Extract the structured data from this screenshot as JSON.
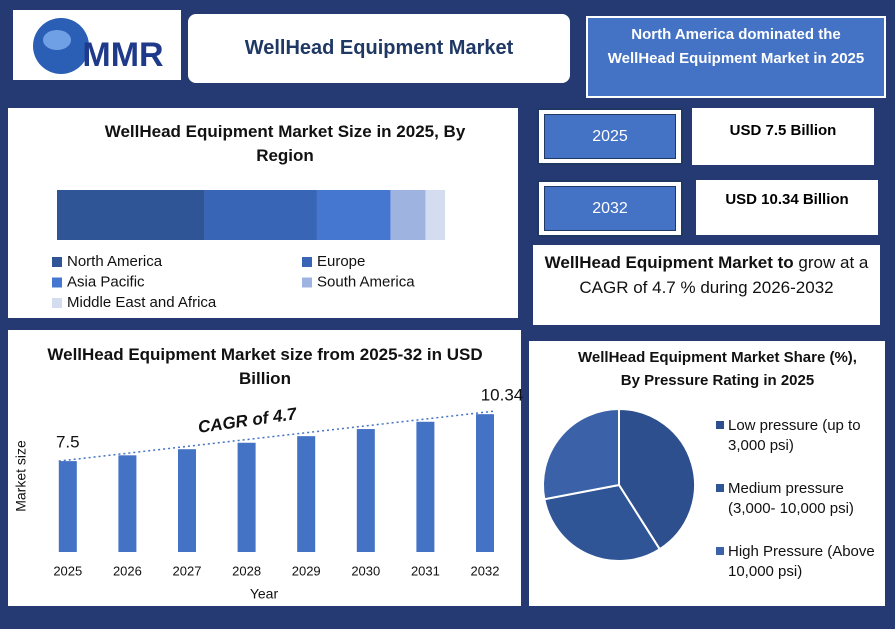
{
  "header": {
    "logo_text": "MMR",
    "title": "WellHead Equipment Market",
    "highlight": "North America dominated the WellHead Equipment Market in 2025"
  },
  "stats": [
    {
      "year": "2025",
      "value": "USD 7.5 Billion"
    },
    {
      "year": "2032",
      "value": "USD 10.34 Billion"
    }
  ],
  "cagr_text": {
    "bold": "WellHead Equipment Market to",
    "rest": "grow at a CAGR of 4.7 % during 2026-2032"
  },
  "chart_data": [
    {
      "type": "stacked-bar",
      "title": "WellHead Equipment Market Size in 2025, By Region",
      "xlim": [
        0,
        100
      ],
      "series": [
        {
          "name": "North America",
          "color": "#2f5597",
          "values": [
            38
          ]
        },
        {
          "name": "Europe",
          "color": "#3865b5",
          "values": [
            29
          ]
        },
        {
          "name": "Asia Pacific",
          "color": "#4677d0",
          "values": [
            19
          ]
        },
        {
          "name": "South America",
          "color": "#9fb3e0",
          "values": [
            9
          ]
        },
        {
          "name": "Middle East and Africa",
          "color": "#d4dcef",
          "values": [
            5
          ]
        }
      ]
    },
    {
      "type": "bar",
      "title": "WellHead Equipment Market size from 2025-32 in USD Billion",
      "categories": [
        "2025",
        "2026",
        "2027",
        "2028",
        "2029",
        "2030",
        "2031",
        "2032"
      ],
      "values": [
        7.5,
        7.85,
        8.22,
        8.61,
        9.01,
        9.44,
        9.88,
        10.34
      ],
      "value_labels": [
        "7.5",
        null,
        null,
        null,
        null,
        null,
        null,
        "10.34"
      ],
      "color": "#4472c4",
      "ylim": [
        2,
        11.5
      ],
      "annotation": "CAGR of 4.7",
      "x_label": "Year",
      "y_label": "Market size"
    },
    {
      "type": "pie",
      "title": "WellHead Equipment Market Share (%), By Pressure Rating in 2025",
      "categories": [
        "Low pressure (up to 3,000 psi)",
        "Medium pressure (3,000- 10,000 psi)",
        "High Pressure (Above 10,000 psi)"
      ],
      "values": [
        41,
        31,
        28
      ],
      "colors": [
        "#2e4f8e",
        "#2f5597",
        "#3b62a8"
      ]
    }
  ]
}
